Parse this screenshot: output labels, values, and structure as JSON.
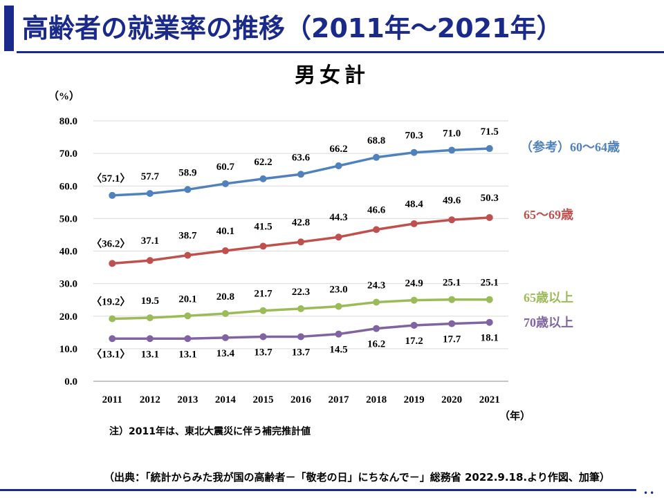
{
  "slide": {
    "title": "高齢者の就業率の推移（2011年～2021年）",
    "subtitle": "男女計",
    "note": "注）2011年は、東北大震災に伴う補完推計値",
    "source": "（出典：「統計からみた我が国の高齢者－「敬老の日」にちなんで－」総務省 2022.9.18.より作図、加筆）",
    "corner_mark": "••",
    "colors": {
      "title": "#1a2a8a",
      "rule": "#1a2a8a"
    }
  },
  "chart_data": {
    "type": "line",
    "title": "男女計",
    "ylabel": "（%）",
    "xlabel": "（年）",
    "ylim": [
      0,
      80
    ],
    "yticks": [
      0,
      10,
      20,
      30,
      40,
      50,
      60,
      70,
      80
    ],
    "ytick_labels": [
      "0.0",
      "10.0",
      "20.0",
      "30.0",
      "40.0",
      "50.0",
      "60.0",
      "70.0",
      "80.0"
    ],
    "grid": "horizontal",
    "categories": [
      "2011",
      "2012",
      "2013",
      "2014",
      "2015",
      "2016",
      "2017",
      "2018",
      "2019",
      "2020",
      "2021"
    ],
    "first_value_labels_bracketed": true,
    "series": [
      {
        "name": "（参考）60～64歳",
        "color": "#4f81bd",
        "values": [
          57.1,
          57.7,
          58.9,
          60.7,
          62.2,
          63.6,
          66.2,
          68.8,
          70.3,
          71.0,
          71.5
        ],
        "labels": [
          "〈57.1〉",
          "57.7",
          "58.9",
          "60.7",
          "62.2",
          "63.6",
          "66.2",
          "68.8",
          "70.3",
          "71.0",
          "71.5"
        ]
      },
      {
        "name": "65～69歳",
        "color": "#c0504d",
        "values": [
          36.2,
          37.1,
          38.7,
          40.1,
          41.5,
          42.8,
          44.3,
          46.6,
          48.4,
          49.6,
          50.3
        ],
        "labels": [
          "〈36.2〉",
          "37.1",
          "38.7",
          "40.1",
          "41.5",
          "42.8",
          "44.3",
          "46.6",
          "48.4",
          "49.6",
          "50.3"
        ]
      },
      {
        "name": "65歳以上",
        "color": "#9bbb59",
        "values": [
          19.2,
          19.5,
          20.1,
          20.8,
          21.7,
          22.3,
          23.0,
          24.3,
          24.9,
          25.1,
          25.1
        ],
        "labels": [
          "〈19.2〉",
          "19.5",
          "20.1",
          "20.8",
          "21.7",
          "22.3",
          "23.0",
          "24.3",
          "24.9",
          "25.1",
          "25.1"
        ]
      },
      {
        "name": "70歳以上",
        "color": "#8064a2",
        "values": [
          13.1,
          13.1,
          13.1,
          13.4,
          13.7,
          13.7,
          14.5,
          16.2,
          17.2,
          17.7,
          18.1
        ],
        "labels": [
          "〈13.1〉",
          "13.1",
          "13.1",
          "13.4",
          "13.7",
          "13.7",
          "14.5",
          "16.2",
          "17.2",
          "17.7",
          "18.1"
        ]
      }
    ]
  }
}
